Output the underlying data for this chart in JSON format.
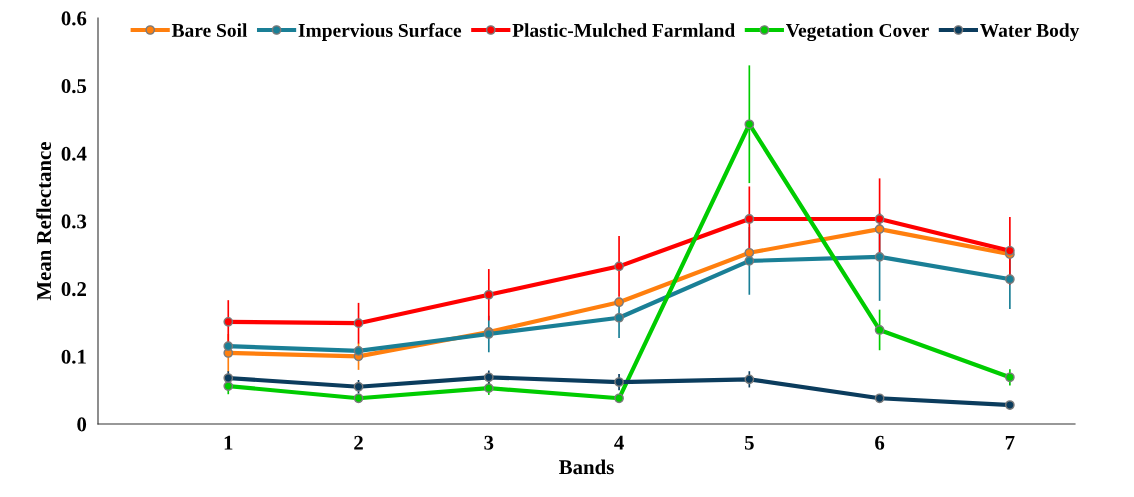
{
  "chart_data": {
    "type": "line",
    "xlabel": "Bands",
    "ylabel": "Mean Reflectance",
    "categories": [
      "1",
      "2",
      "3",
      "4",
      "5",
      "6",
      "7"
    ],
    "series": [
      {
        "name": "Bare Soil",
        "color": "#ff7f0e",
        "values": [
          0.105,
          0.1,
          0.136,
          0.18,
          0.253,
          0.288,
          0.251
        ],
        "errors": [
          0.028,
          0.02,
          null,
          null,
          null,
          null,
          null
        ]
      },
      {
        "name": "Impervious Surface",
        "color": "#1a7f96",
        "values": [
          0.115,
          0.108,
          0.133,
          0.157,
          0.241,
          0.247,
          0.214
        ],
        "errors": [
          null,
          null,
          0.027,
          0.03,
          0.05,
          0.065,
          0.044
        ]
      },
      {
        "name": "Plastic-Mulched Farmland",
        "color": "#ff0000",
        "values": [
          0.151,
          0.149,
          0.191,
          0.233,
          0.303,
          0.303,
          0.256
        ],
        "errors": [
          0.032,
          0.03,
          0.038,
          0.045,
          0.048,
          0.06,
          0.05
        ]
      },
      {
        "name": "Vegetation Cover",
        "color": "#00cc00",
        "values": [
          0.056,
          0.038,
          0.053,
          0.038,
          0.443,
          0.139,
          0.069
        ],
        "errors": [
          0.012,
          0.005,
          0.01,
          0.005,
          0.087,
          0.03,
          0.012
        ]
      },
      {
        "name": "Water Body",
        "color": "#0b3c5d",
        "values": [
          0.068,
          0.055,
          0.069,
          0.062,
          0.066,
          0.038,
          0.028
        ],
        "errors": [
          0.01,
          0.01,
          0.01,
          0.012,
          0.012,
          0.005,
          0.003
        ]
      }
    ],
    "ylim": [
      0,
      0.6
    ],
    "yticks": [
      {
        "value": 0,
        "label": "0"
      },
      0.1,
      0.2,
      0.3,
      0.4,
      0.5,
      0.6
    ],
    "grid": false,
    "legend": "top",
    "marker": "circle",
    "line_style": "solid"
  }
}
